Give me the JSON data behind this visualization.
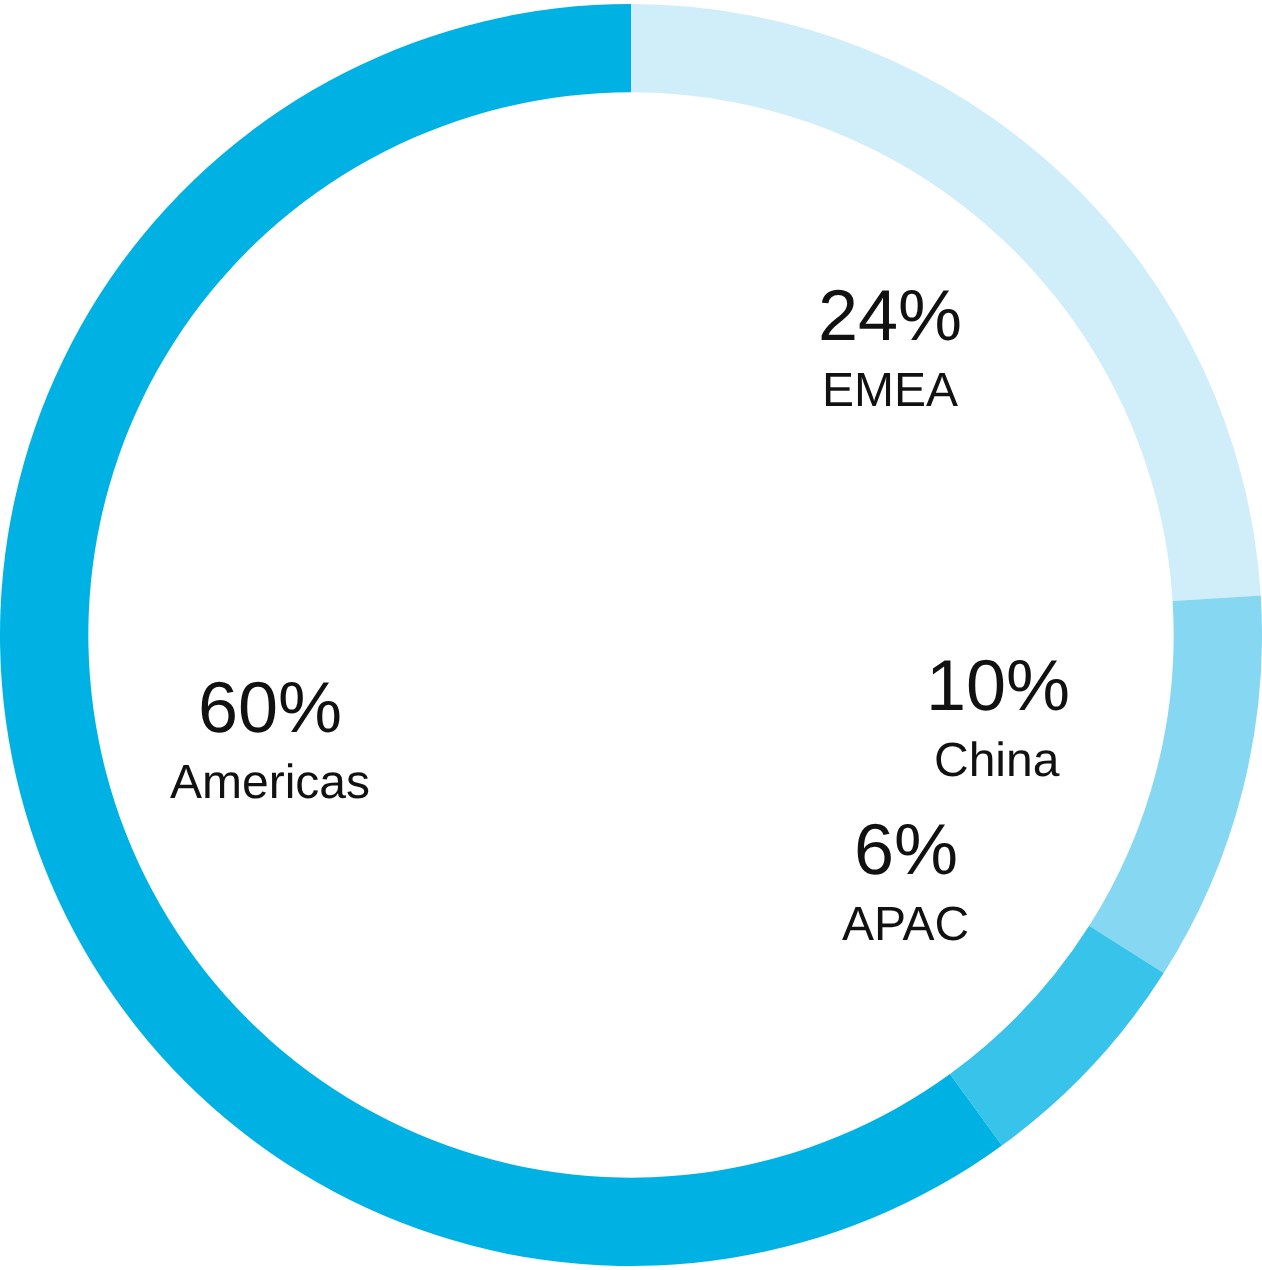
{
  "chart_data": {
    "type": "donut",
    "categories": [
      "EMEA",
      "China",
      "APAC",
      "Americas"
    ],
    "values": [
      24,
      10,
      6,
      60
    ],
    "colors": [
      "#d0eef9",
      "#86d8f2",
      "#38c3eb",
      "#00b2e3"
    ],
    "value_labels": [
      "24%",
      "10%",
      "6%",
      "60%"
    ]
  }
}
